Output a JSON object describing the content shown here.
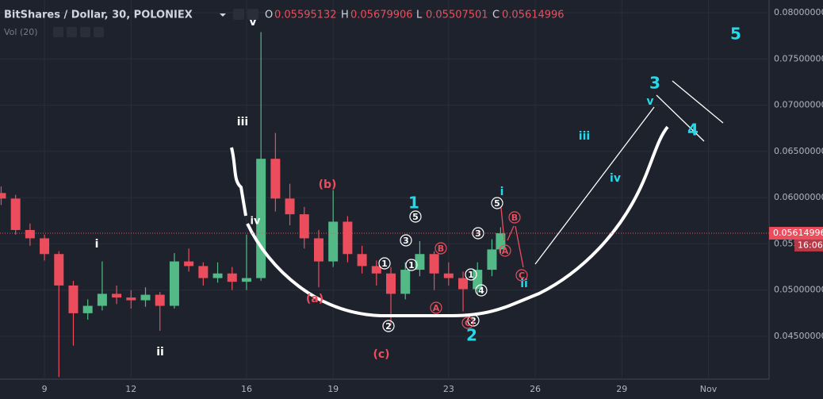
{
  "chart_data": {
    "type": "candlestick",
    "title": "BitShares / Dollar, 30, POLONIEX",
    "header_ohlc": [
      {
        "name": "O",
        "value": 0.05595132
      },
      {
        "name": "H",
        "value": 0.05679906
      },
      {
        "name": "L",
        "value": 0.05507501
      },
      {
        "name": "C",
        "value": 0.05614996
      }
    ],
    "indicator": "Vol (20)",
    "last_price": 0.05614996,
    "countdown": "16:06",
    "up_color": "#53b987",
    "down_color": "#eb4d5c",
    "grid": true,
    "x": [
      7.5,
      8,
      8.5,
      9,
      9.5,
      10,
      10.5,
      11,
      11.5,
      12,
      12.5,
      13,
      13.5,
      14,
      14.5,
      15,
      15.5,
      16,
      16.5,
      17,
      17.5,
      18,
      18.5,
      19,
      19.5,
      20,
      20.5,
      21,
      21.5,
      22,
      22.5,
      23,
      23.5,
      24,
      24.5,
      24.8
    ],
    "open": [
      0.0605,
      0.0599,
      0.0565,
      0.0556,
      0.0539,
      0.0505,
      0.0475,
      0.0483,
      0.0496,
      0.0492,
      0.0489,
      0.0495,
      0.0483,
      0.0531,
      0.0526,
      0.0513,
      0.0518,
      0.0509,
      0.0513,
      0.0642,
      0.0599,
      0.0582,
      0.0556,
      0.0531,
      0.0574,
      0.0539,
      0.0526,
      0.0518,
      0.0496,
      0.0522,
      0.0539,
      0.0518,
      0.0513,
      0.0501,
      0.0522,
      0.0544
    ],
    "high": [
      0.0612,
      0.0603,
      0.0572,
      0.056,
      0.0542,
      0.051,
      0.049,
      0.0531,
      0.0505,
      0.05,
      0.0503,
      0.0498,
      0.054,
      0.0545,
      0.053,
      0.053,
      0.0525,
      0.056,
      0.0779,
      0.067,
      0.0615,
      0.059,
      0.0565,
      0.0608,
      0.058,
      0.0548,
      0.0532,
      0.0525,
      0.053,
      0.0553,
      0.0542,
      0.053,
      0.052,
      0.053,
      0.0555,
      0.0568
    ],
    "low": [
      0.0592,
      0.056,
      0.0548,
      0.0532,
      0.0406,
      0.044,
      0.0468,
      0.0478,
      0.0485,
      0.048,
      0.0482,
      0.0456,
      0.048,
      0.052,
      0.0505,
      0.0508,
      0.05,
      0.05,
      0.051,
      0.0585,
      0.057,
      0.0545,
      0.0503,
      0.0525,
      0.053,
      0.0518,
      0.0505,
      0.0462,
      0.049,
      0.0515,
      0.05,
      0.0505,
      0.0477,
      0.0495,
      0.0515,
      0.054
    ],
    "close": [
      0.0599,
      0.0565,
      0.0556,
      0.0539,
      0.0505,
      0.0475,
      0.0483,
      0.0496,
      0.0492,
      0.0489,
      0.0495,
      0.0483,
      0.0531,
      0.0526,
      0.0513,
      0.0518,
      0.0509,
      0.0513,
      0.0642,
      0.0599,
      0.0582,
      0.0556,
      0.0531,
      0.0574,
      0.0539,
      0.0526,
      0.0518,
      0.0496,
      0.0522,
      0.0539,
      0.0518,
      0.0513,
      0.0501,
      0.0522,
      0.0544,
      0.05614996
    ],
    "xlim": [
      7.46,
      34.1
    ],
    "xticks": [
      9,
      12,
      16,
      19,
      23,
      26,
      29,
      {
        "value": 32,
        "label": "Nov"
      }
    ],
    "ylim": [
      0.04037,
      0.08137
    ],
    "yticks": [
      {
        "value": 0.045,
        "label": "0.04500000"
      },
      {
        "value": 0.05,
        "label": "0.05000000"
      },
      {
        "value": 0.055,
        "label": "0.05500000"
      },
      {
        "value": 0.06,
        "label": "0.06000000"
      },
      {
        "value": 0.065,
        "label": "0.06500000"
      },
      {
        "value": 0.07,
        "label": "0.07000000"
      },
      {
        "value": 0.075,
        "label": "0.07500000"
      },
      {
        "value": 0.08,
        "label": "0.08000000"
      }
    ],
    "annotations": [
      "v",
      "iii",
      "iv",
      "i",
      "ii",
      "(b)",
      "(a)",
      "(c)",
      "1",
      "2",
      "3",
      "4",
      "5",
      "i",
      "ii",
      "iii",
      "iv",
      "v",
      "5",
      "3",
      "1",
      "2",
      "1",
      "3",
      "1",
      "4",
      "2",
      "5",
      "B",
      "A",
      "C",
      "A",
      "B",
      "C"
    ]
  }
}
